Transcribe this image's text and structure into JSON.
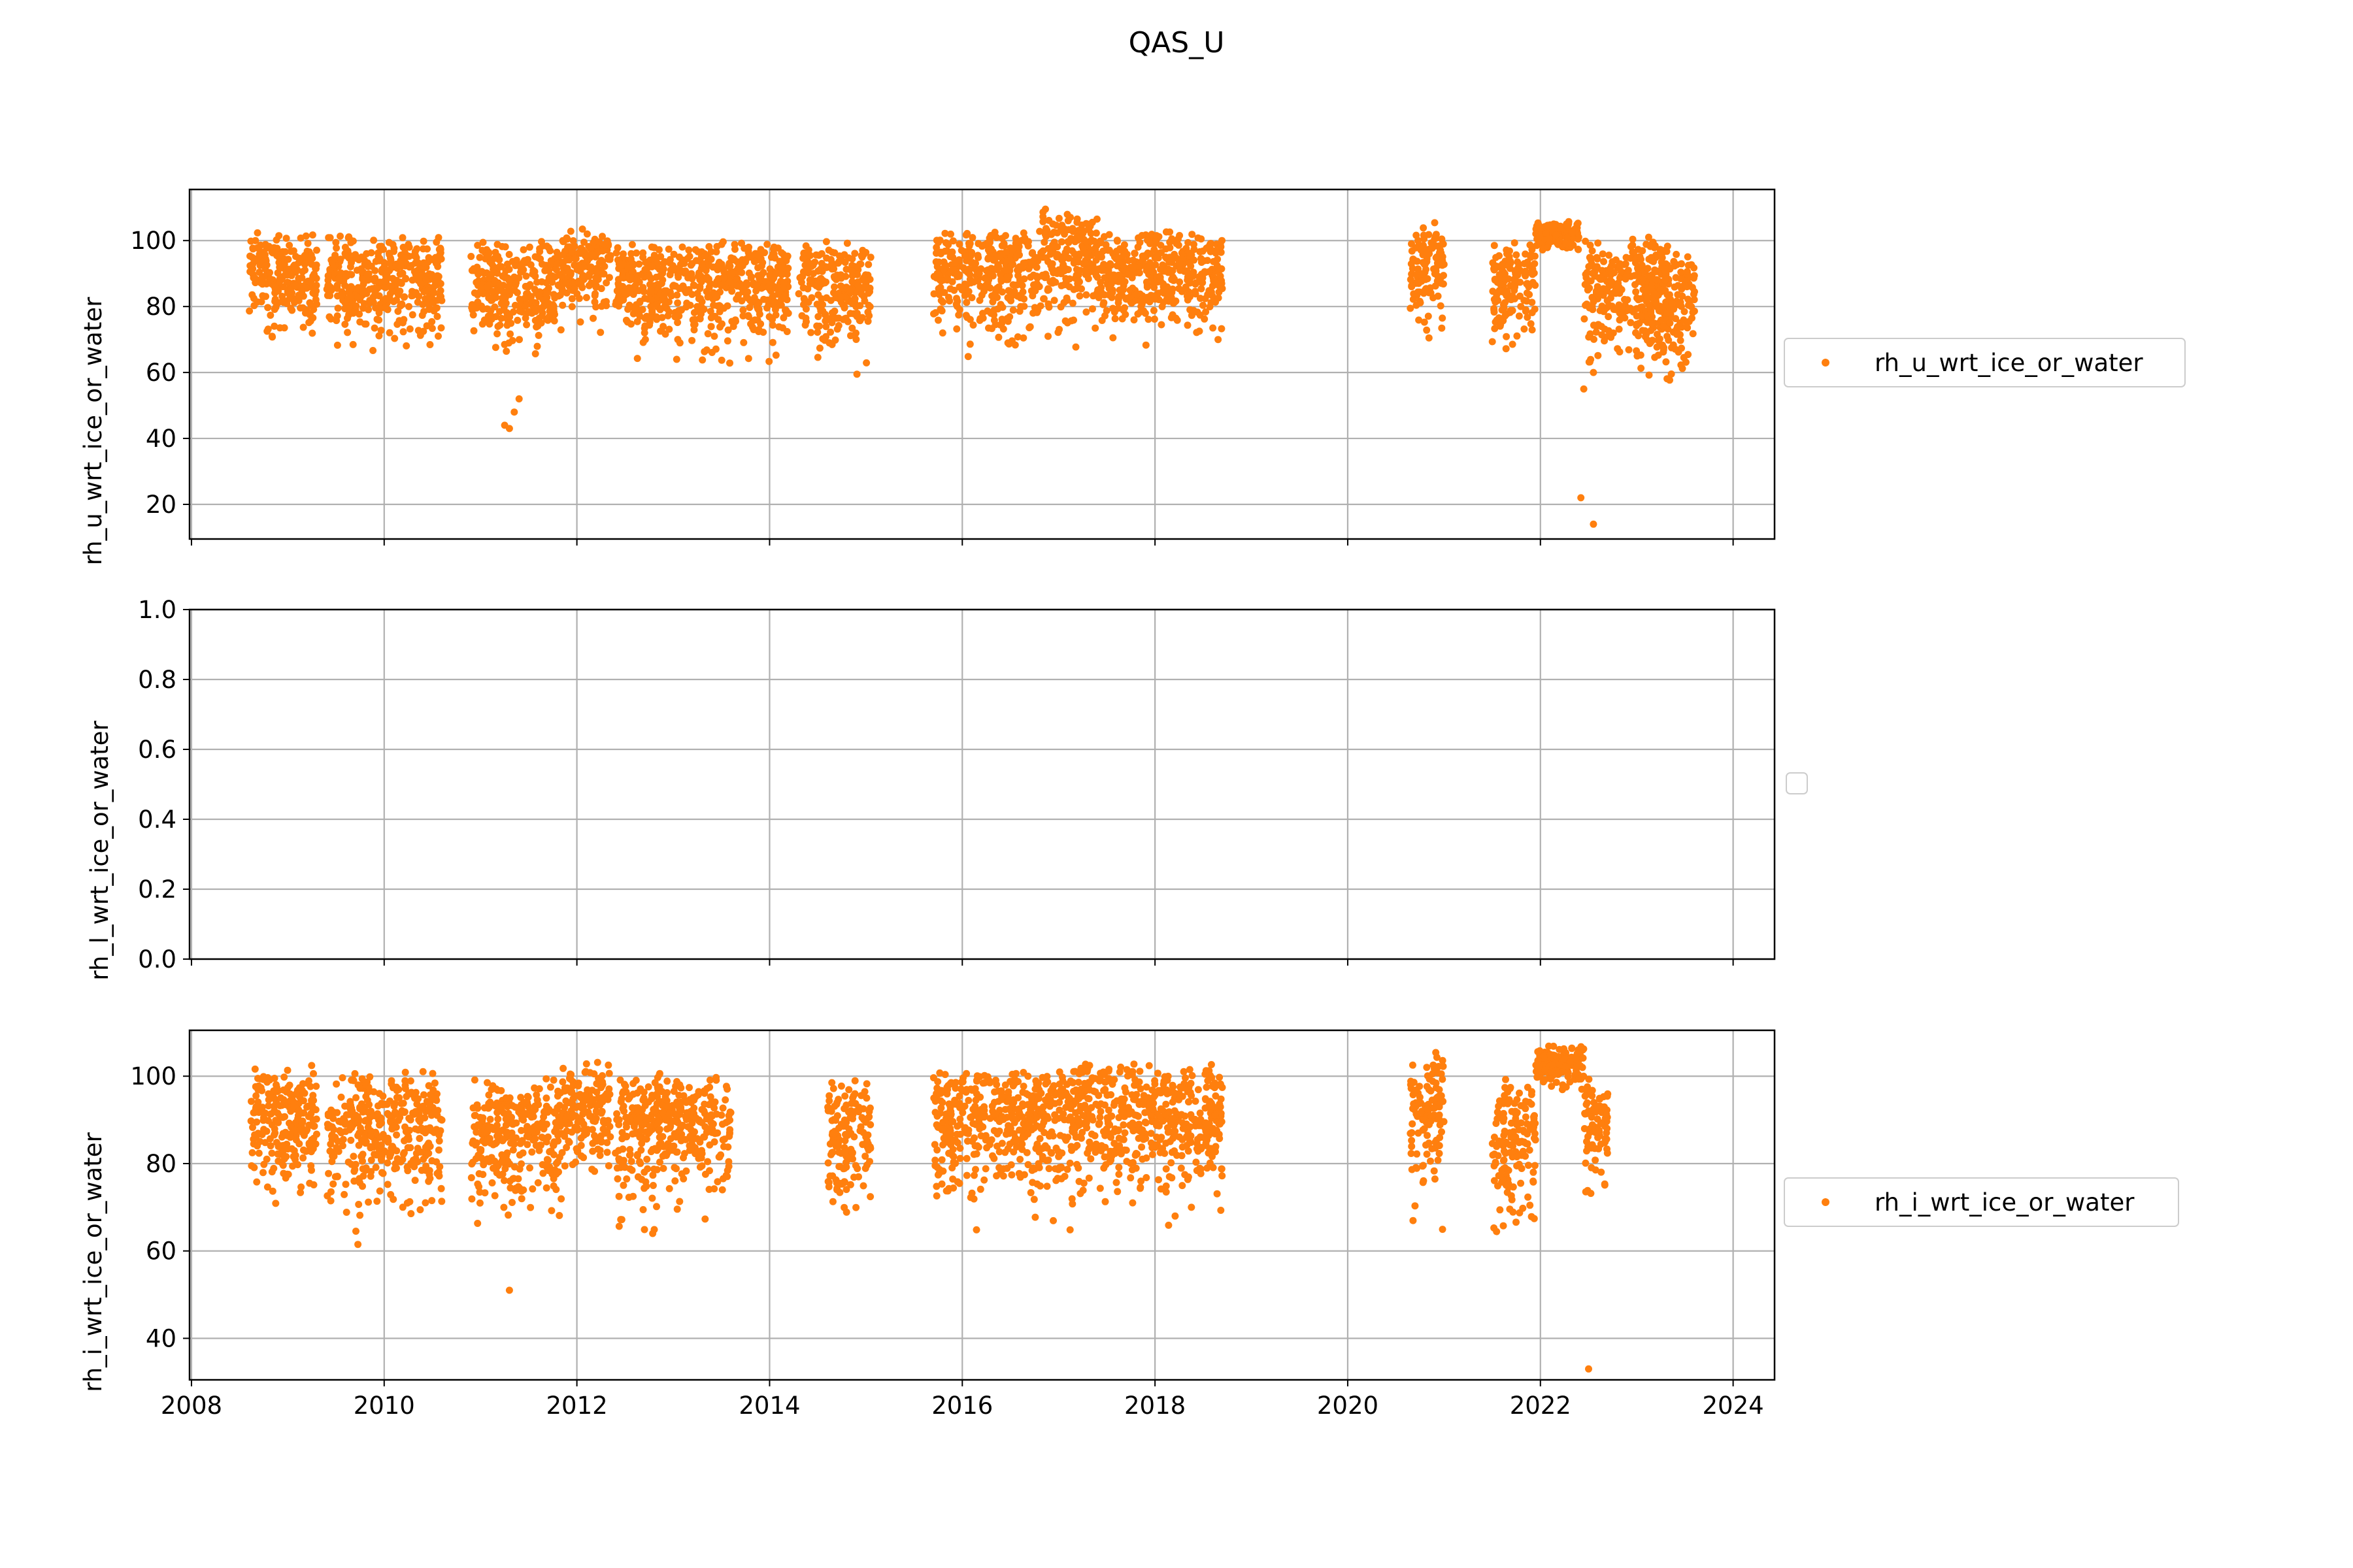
{
  "figure": {
    "title": "QAS_U",
    "marker_color": "#ff7f0e"
  },
  "chart_data": [
    {
      "type": "scatter",
      "ylabel": "rh_u_wrt_ice_or_water",
      "legend": "rh_u_wrt_ice_or_water",
      "legend_position": "right",
      "grid": true,
      "xlim": [
        2007.98,
        2024.43
      ],
      "ylim": [
        9.5,
        115.5
      ],
      "xticks": [
        2008,
        2010,
        2012,
        2014,
        2016,
        2018,
        2020,
        2022,
        2024
      ],
      "yticks": [
        20,
        40,
        60,
        80,
        100
      ],
      "ytick_labels": [
        "20",
        "40",
        "60",
        "80",
        "100"
      ],
      "segments": [
        {
          "x": [
            2008.6,
            2009.3
          ],
          "y": [
            63,
            103
          ]
        },
        {
          "x": [
            2009.4,
            2010.6
          ],
          "y": [
            60,
            102
          ]
        },
        {
          "x": [
            2010.9,
            2011.85
          ],
          "y": [
            60,
            100
          ]
        },
        {
          "x": [
            2011.85,
            2012.35
          ],
          "y": [
            70,
            104
          ]
        },
        {
          "x": [
            2012.4,
            2013.3
          ],
          "y": [
            57,
            100
          ]
        },
        {
          "x": [
            2013.3,
            2014.2
          ],
          "y": [
            57,
            101
          ]
        },
        {
          "x": [
            2014.3,
            2015.05
          ],
          "y": [
            56,
            100
          ]
        },
        {
          "x": [
            2015.7,
            2016.8
          ],
          "y": [
            61,
            104
          ]
        },
        {
          "x": [
            2016.8,
            2017.4
          ],
          "y": [
            63,
            110
          ]
        },
        {
          "x": [
            2017.4,
            2018.7
          ],
          "y": [
            61,
            104
          ]
        },
        {
          "x": [
            2020.65,
            2021.0
          ],
          "y": [
            60,
            106
          ]
        },
        {
          "x": [
            2021.5,
            2021.95
          ],
          "y": [
            58,
            100
          ]
        },
        {
          "x": [
            2021.95,
            2022.4
          ],
          "y": [
            95,
            106
          ]
        },
        {
          "x": [
            2022.45,
            2023.35
          ],
          "y": [
            52,
            102
          ]
        },
        {
          "x": [
            2023.1,
            2023.6
          ],
          "y": [
            51,
            100
          ]
        }
      ],
      "outliers": [
        {
          "x": 2011.25,
          "y": 44
        },
        {
          "x": 2011.3,
          "y": 43
        },
        {
          "x": 2011.35,
          "y": 48
        },
        {
          "x": 2011.4,
          "y": 52
        },
        {
          "x": 2022.45,
          "y": 55
        },
        {
          "x": 2022.55,
          "y": 60
        },
        {
          "x": 2022.42,
          "y": 22
        },
        {
          "x": 2022.55,
          "y": 14
        }
      ]
    },
    {
      "type": "scatter",
      "ylabel": "rh_l_wrt_ice_or_water",
      "legend": "",
      "legend_position": "right",
      "grid": true,
      "xlim": [
        2007.98,
        2024.43
      ],
      "ylim": [
        0.0,
        1.0
      ],
      "xticks": [
        2008,
        2010,
        2012,
        2014,
        2016,
        2018,
        2020,
        2022,
        2024
      ],
      "yticks": [
        0.0,
        0.2,
        0.4,
        0.6,
        0.8,
        1.0
      ],
      "ytick_labels": [
        "0.0",
        "0.2",
        "0.4",
        "0.6",
        "0.8",
        "1.0"
      ],
      "segments": [],
      "outliers": []
    },
    {
      "type": "scatter",
      "ylabel": "rh_i_wrt_ice_or_water",
      "legend": "rh_i_wrt_ice_or_water",
      "legend_position": "right",
      "grid": true,
      "xlim": [
        2007.98,
        2024.43
      ],
      "ylim": [
        30.5,
        110.5
      ],
      "xticks": [
        2008,
        2010,
        2012,
        2014,
        2016,
        2018,
        2020,
        2022,
        2024
      ],
      "xtick_labels": [
        "2008",
        "2010",
        "2012",
        "2014",
        "2016",
        "2018",
        "2020",
        "2022",
        "2024"
      ],
      "yticks": [
        40,
        60,
        80,
        100
      ],
      "ytick_labels": [
        "40",
        "60",
        "80",
        "100"
      ],
      "segments": [
        {
          "x": [
            2008.6,
            2009.3
          ],
          "y": [
            66,
            103
          ]
        },
        {
          "x": [
            2009.4,
            2010.6
          ],
          "y": [
            59,
            102
          ]
        },
        {
          "x": [
            2010.9,
            2011.85
          ],
          "y": [
            60,
            100
          ]
        },
        {
          "x": [
            2011.85,
            2012.35
          ],
          "y": [
            70,
            104
          ]
        },
        {
          "x": [
            2012.4,
            2013.6
          ],
          "y": [
            59,
            101
          ]
        },
        {
          "x": [
            2014.6,
            2015.05
          ],
          "y": [
            57,
            100
          ]
        },
        {
          "x": [
            2015.7,
            2016.8
          ],
          "y": [
            63,
            103
          ]
        },
        {
          "x": [
            2016.8,
            2017.4
          ],
          "y": [
            63,
            105
          ]
        },
        {
          "x": [
            2017.4,
            2018.7
          ],
          "y": [
            61,
            104
          ]
        },
        {
          "x": [
            2020.65,
            2021.0
          ],
          "y": [
            62,
            106
          ]
        },
        {
          "x": [
            2021.5,
            2021.95
          ],
          "y": [
            58,
            100
          ]
        },
        {
          "x": [
            2021.95,
            2022.45
          ],
          "y": [
            95,
            107
          ]
        },
        {
          "x": [
            2022.45,
            2022.7
          ],
          "y": [
            63,
            100
          ]
        }
      ],
      "outliers": [
        {
          "x": 2011.3,
          "y": 51
        },
        {
          "x": 2022.5,
          "y": 33
        }
      ]
    }
  ]
}
